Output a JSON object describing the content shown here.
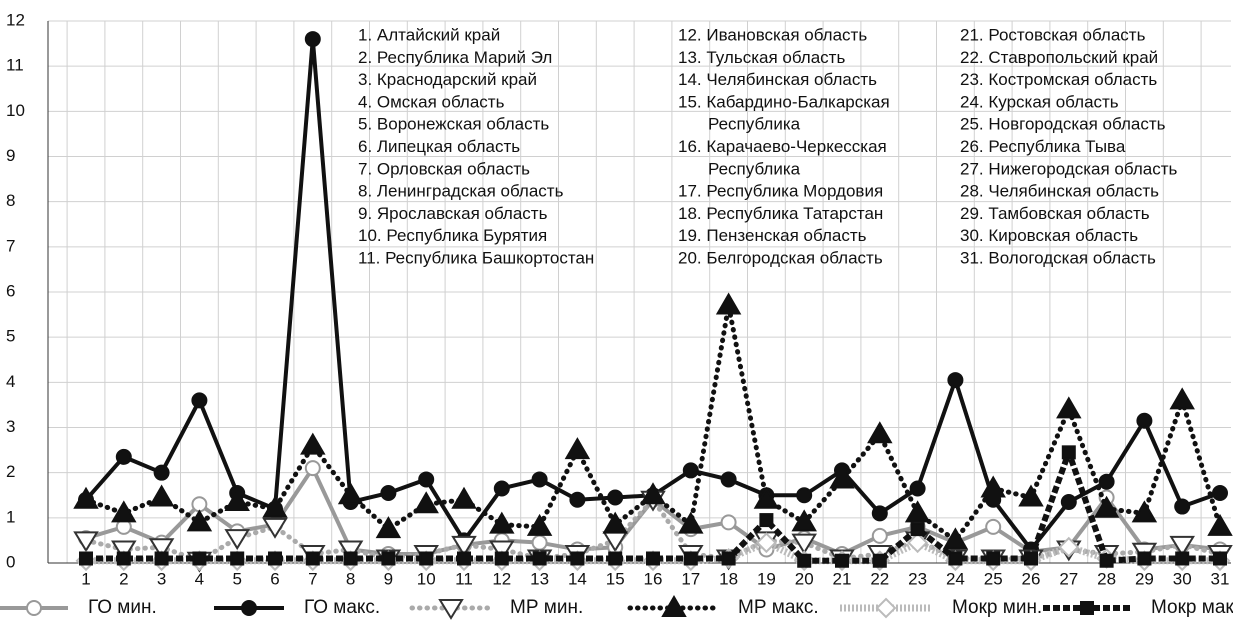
{
  "chart_data": {
    "type": "line",
    "categories": [
      "1",
      "2",
      "3",
      "4",
      "5",
      "6",
      "7",
      "8",
      "9",
      "10",
      "11",
      "12",
      "13",
      "14",
      "15",
      "16",
      "17",
      "18",
      "19",
      "20",
      "21",
      "22",
      "23",
      "24",
      "25",
      "26",
      "27",
      "28",
      "29",
      "30",
      "31"
    ],
    "ylim": [
      0,
      12
    ],
    "yticks": [
      0,
      1,
      2,
      3,
      4,
      5,
      6,
      7,
      8,
      9,
      10,
      11,
      12
    ],
    "grid": true,
    "legend": "bottom",
    "series": [
      {
        "name": "ГО мин.",
        "color": "#999999",
        "style": "solid",
        "marker": "circle-open",
        "values": [
          0.55,
          0.8,
          0.45,
          1.3,
          0.7,
          0.85,
          2.1,
          0.3,
          0.2,
          0.2,
          0.4,
          0.5,
          0.45,
          0.3,
          0.35,
          1.4,
          0.75,
          0.9,
          0.3,
          0.55,
          0.2,
          0.6,
          0.8,
          0.45,
          0.8,
          0.25,
          0.35,
          1.45,
          0.3,
          0.4,
          0.3
        ]
      },
      {
        "name": "ГО макс.",
        "color": "#111111",
        "style": "solid",
        "marker": "circle",
        "values": [
          1.4,
          2.35,
          2.0,
          3.6,
          1.55,
          1.2,
          11.6,
          1.35,
          1.55,
          1.85,
          0.5,
          1.65,
          1.85,
          1.4,
          1.45,
          1.5,
          2.05,
          1.85,
          1.5,
          1.5,
          2.05,
          1.1,
          1.65,
          4.05,
          1.4,
          0.3,
          1.35,
          1.8,
          3.15,
          1.25,
          1.55
        ]
      },
      {
        "name": "МР мин.",
        "color": "#aaaaaa",
        "style": "dotted",
        "marker": "triangle-down-open",
        "values": [
          0.5,
          0.3,
          0.35,
          0.05,
          0.55,
          0.8,
          0.2,
          0.3,
          0.1,
          0.2,
          0.4,
          0.3,
          0.1,
          0.2,
          0.5,
          1.4,
          0.2,
          0.1,
          0.5,
          0.45,
          0.1,
          0.2,
          0.5,
          0.1,
          0.1,
          0.1,
          0.3,
          0.2,
          0.25,
          0.4,
          0.2
        ]
      },
      {
        "name": "МР макс.",
        "color": "#111111",
        "style": "dotted",
        "marker": "triangle",
        "values": [
          1.4,
          1.1,
          1.45,
          0.9,
          1.35,
          1.2,
          2.6,
          1.5,
          0.75,
          1.3,
          1.4,
          0.85,
          0.8,
          2.5,
          0.85,
          1.5,
          0.85,
          5.7,
          1.4,
          0.9,
          1.85,
          2.85,
          1.1,
          0.5,
          1.65,
          1.45,
          3.4,
          1.2,
          1.1,
          3.6,
          0.8
        ]
      },
      {
        "name": "Мокр мин.",
        "color": "#bbbbbb",
        "style": "striped",
        "marker": "diamond-open",
        "values": [
          0.05,
          0.05,
          0.05,
          0.05,
          0.05,
          0.05,
          0.05,
          0.05,
          0.05,
          0.05,
          0.05,
          0.05,
          0.05,
          0.05,
          0.05,
          0.05,
          0.05,
          0.1,
          0.45,
          0.05,
          0.05,
          0.05,
          0.45,
          0.05,
          0.05,
          0.05,
          0.35,
          0.1,
          0.05,
          0.05,
          0.05
        ]
      },
      {
        "name": "Мокр макс",
        "color": "#111111",
        "style": "dashed",
        "marker": "square",
        "values": [
          0.1,
          0.1,
          0.1,
          0.1,
          0.1,
          0.1,
          0.1,
          0.1,
          0.1,
          0.1,
          0.1,
          0.1,
          0.1,
          0.1,
          0.1,
          0.1,
          0.1,
          0.1,
          0.95,
          0.05,
          0.05,
          0.05,
          0.75,
          0.1,
          0.1,
          0.1,
          2.45,
          0.05,
          0.1,
          0.1,
          0.1
        ]
      }
    ],
    "region_list": [
      [
        "1. Алтайский край",
        "2. Республика Марий Эл",
        "3. Краснодарский край",
        "4. Омская область",
        "5. Воронежская область",
        "6. Липецкая область",
        "7. Орловская область",
        "8. Ленинградская область",
        "9. Ярославская область",
        "10. Республика Бурятия",
        "11. Республика Башкортостан"
      ],
      [
        "12. Ивановская область",
        "13. Тульская область",
        "14. Челябинская область",
        "15. Кабардино-Балкарская",
        "Республика",
        "16. Карачаево-Черкесская",
        "Республика",
        "17. Республика Мордовия",
        "18. Республика Татарстан",
        "19. Пензенская область",
        "20. Белгородская область"
      ],
      [
        "21. Ростовская область",
        "22. Ставропольский край",
        "23. Костромская область",
        "24. Курская область",
        "25. Новгородская область",
        "26. Республика Тыва",
        "27. Нижегородская область",
        "28. Челябинская область",
        "29. Тамбовская область",
        "30. Кировская область",
        "31. Вологодская область"
      ]
    ]
  }
}
